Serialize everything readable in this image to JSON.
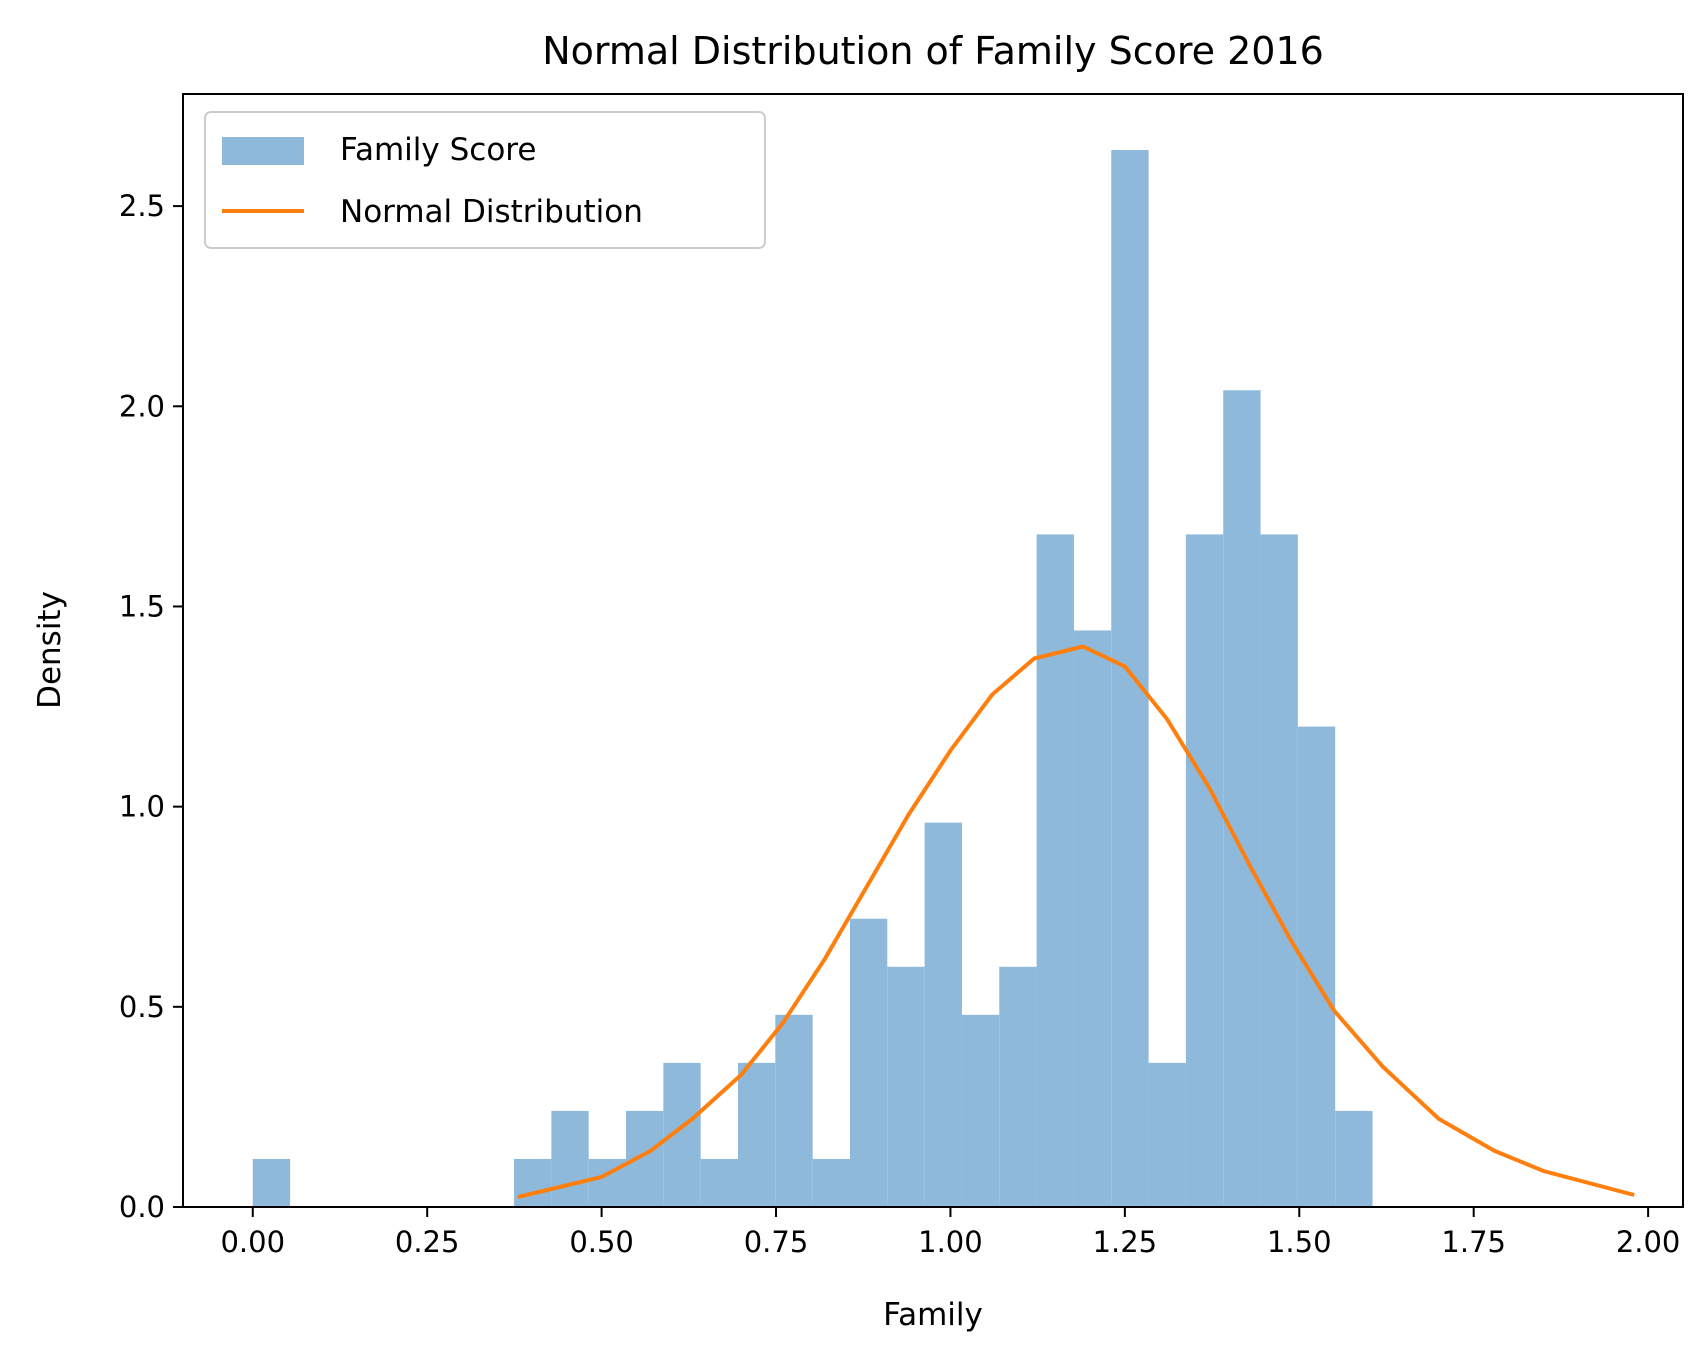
{
  "chart_data": {
    "type": "bar",
    "title": "Normal Distribution of Family Score 2016",
    "xlabel": "Family",
    "ylabel": "Density",
    "xlim": [
      -0.1,
      2.05
    ],
    "ylim": [
      0,
      2.78
    ],
    "xticks": [
      0.0,
      0.25,
      0.5,
      0.75,
      1.0,
      1.25,
      1.5,
      1.75,
      2.0
    ],
    "xtick_labels": [
      "0.00",
      "0.25",
      "0.50",
      "0.75",
      "1.00",
      "1.25",
      "1.50",
      "1.75",
      "2.00"
    ],
    "yticks": [
      0.0,
      0.5,
      1.0,
      1.5,
      2.0,
      2.5
    ],
    "ytick_labels": [
      "0.0",
      "0.5",
      "1.0",
      "1.5",
      "2.0",
      "2.5"
    ],
    "grid": false,
    "legend_position": "top-left",
    "legend": [
      "Family Score",
      "Normal Distribution"
    ],
    "colors": {
      "bars": "#8fb9da",
      "line": "#ff7f0e"
    },
    "histogram": {
      "bin_edges": [
        0.0,
        0.0535,
        0.107,
        0.1605,
        0.214,
        0.2675,
        0.321,
        0.3745,
        0.428,
        0.4815,
        0.535,
        0.5885,
        0.642,
        0.6955,
        0.749,
        0.8025,
        0.856,
        0.9095,
        0.963,
        1.0165,
        1.07,
        1.1235,
        1.177,
        1.2305,
        1.284,
        1.3375,
        1.391,
        1.4445,
        1.498,
        1.5515,
        1.605
      ],
      "values": [
        0.12,
        0,
        0,
        0,
        0,
        0,
        0,
        0.12,
        0.24,
        0.12,
        0.24,
        0.36,
        0.12,
        0.36,
        0.48,
        0.12,
        0.72,
        0.6,
        0.96,
        0.48,
        0.6,
        1.68,
        1.44,
        2.64,
        0.36,
        1.68,
        2.04,
        1.68,
        1.2,
        0.24
      ]
    },
    "normal_curve": {
      "x": [
        0.38,
        0.44,
        0.5,
        0.57,
        0.63,
        0.7,
        0.76,
        0.82,
        0.88,
        0.94,
        1.0,
        1.06,
        1.12,
        1.19,
        1.25,
        1.31,
        1.37,
        1.43,
        1.49,
        1.55,
        1.62,
        1.7,
        1.78,
        1.85,
        1.98
      ],
      "y": [
        0.025,
        0.05,
        0.075,
        0.14,
        0.22,
        0.33,
        0.46,
        0.62,
        0.8,
        0.98,
        1.14,
        1.28,
        1.37,
        1.4,
        1.35,
        1.22,
        1.05,
        0.85,
        0.66,
        0.49,
        0.35,
        0.22,
        0.14,
        0.09,
        0.03
      ]
    }
  }
}
